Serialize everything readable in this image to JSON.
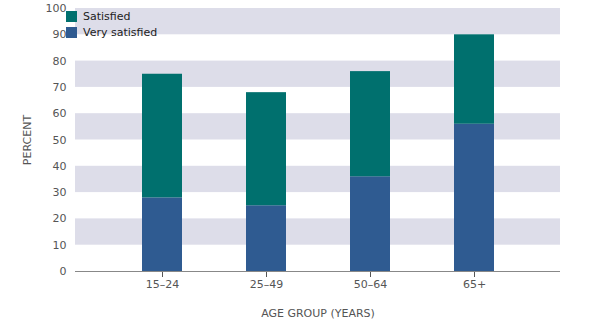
{
  "chart_data": {
    "type": "bar",
    "stacked": true,
    "categories": [
      "15–24",
      "25–49",
      "50–64",
      "65+"
    ],
    "series": [
      {
        "name": "Very satisfied",
        "color": "#2f5b91",
        "values": [
          28,
          25,
          36,
          56
        ]
      },
      {
        "name": "Satisfied",
        "color": "#00706e",
        "values": [
          47,
          43,
          40,
          34
        ]
      }
    ],
    "x_label": "AGE GROUP (YEARS)",
    "y_label": "PERCENT",
    "ylim": [
      0,
      100
    ],
    "yticks": [
      0,
      10,
      20,
      30,
      40,
      50,
      60,
      70,
      80,
      90,
      100
    ],
    "grid": true,
    "legend": "top-left"
  }
}
